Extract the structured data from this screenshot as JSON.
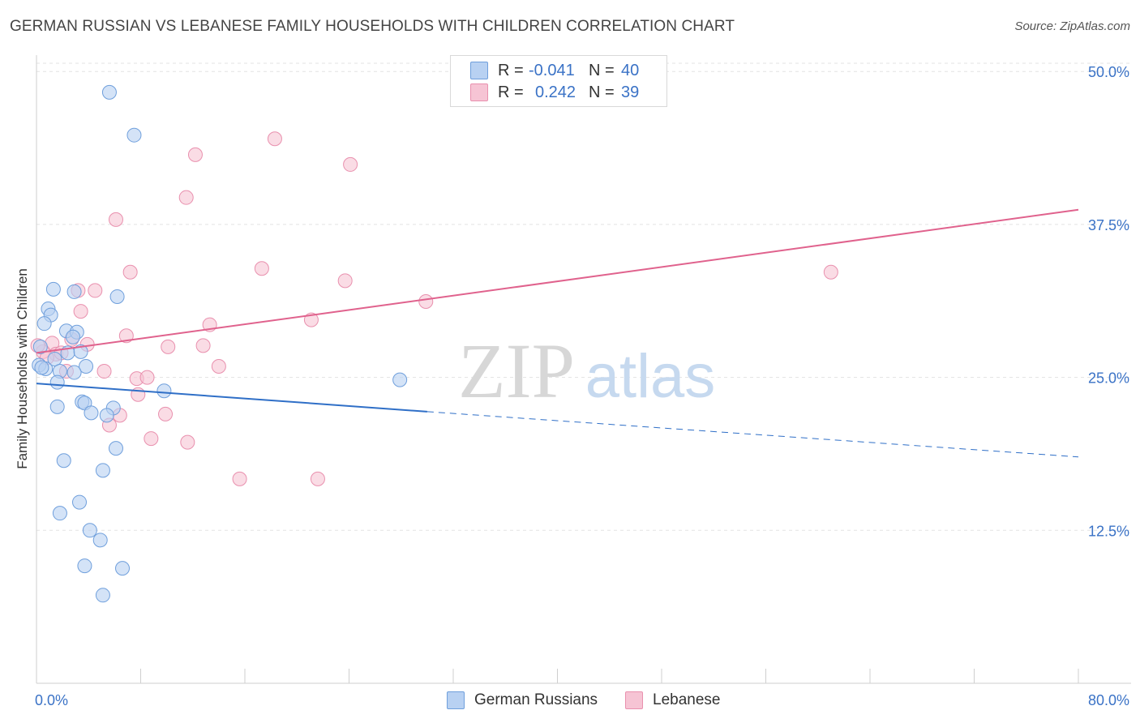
{
  "title": "GERMAN RUSSIAN VS LEBANESE FAMILY HOUSEHOLDS WITH CHILDREN CORRELATION CHART",
  "source": "Source: ZipAtlas.com",
  "watermark": {
    "zip": "ZIP",
    "atlas": "atlas"
  },
  "legend": {
    "series1": {
      "r_label": "R =",
      "r_value": "-0.041",
      "n_label": "N =",
      "n_value": "40"
    },
    "series2": {
      "r_label": "R =",
      "r_value": "0.242",
      "n_label": "N =",
      "n_value": "39"
    }
  },
  "bottom_legend": {
    "series1": "German Russians",
    "series2": "Lebanese"
  },
  "colors": {
    "series1_fill": "#b8d1f2",
    "series1_stroke": "#6f9fdc",
    "series1_line": "#2f6fc7",
    "series2_fill": "#f6c4d4",
    "series2_stroke": "#e990ae",
    "series2_line": "#e0628d",
    "tick_text": "#3a72c6",
    "grid": "#e3e3e3"
  },
  "chart_data": {
    "type": "scatter",
    "title": "GERMAN RUSSIAN VS LEBANESE FAMILY HOUSEHOLDS WITH CHILDREN CORRELATION CHART",
    "xlabel": "",
    "ylabel": "Family Households with Children",
    "xlim": [
      0,
      80
    ],
    "ylim": [
      0,
      52
    ],
    "x_tick_labels": [
      "0.0%",
      "80.0%"
    ],
    "y_ticks": [
      12.5,
      25.0,
      37.5,
      50.0
    ],
    "y_tick_labels": [
      "12.5%",
      "25.0%",
      "37.5%",
      "50.0%"
    ],
    "grid": true,
    "series": [
      {
        "name": "German Russians",
        "r": -0.041,
        "n": 40,
        "points": [
          [
            5.6,
            48.3
          ],
          [
            7.5,
            44.8
          ],
          [
            1.3,
            32.2
          ],
          [
            2.9,
            32.0
          ],
          [
            6.2,
            31.6
          ],
          [
            0.9,
            30.6
          ],
          [
            1.1,
            30.1
          ],
          [
            0.6,
            29.4
          ],
          [
            2.3,
            28.8
          ],
          [
            3.1,
            28.7
          ],
          [
            2.8,
            28.3
          ],
          [
            0.3,
            27.5
          ],
          [
            1.4,
            26.5
          ],
          [
            2.4,
            27.0
          ],
          [
            3.4,
            27.1
          ],
          [
            0.2,
            26.0
          ],
          [
            0.7,
            25.7
          ],
          [
            3.8,
            25.9
          ],
          [
            1.8,
            25.5
          ],
          [
            1.6,
            24.6
          ],
          [
            9.8,
            23.9
          ],
          [
            27.9,
            24.8
          ],
          [
            3.5,
            23.0
          ],
          [
            3.7,
            22.9
          ],
          [
            1.6,
            22.6
          ],
          [
            4.2,
            22.1
          ],
          [
            5.9,
            22.5
          ],
          [
            5.4,
            21.9
          ],
          [
            6.1,
            19.2
          ],
          [
            2.1,
            18.2
          ],
          [
            5.1,
            17.4
          ],
          [
            3.3,
            14.8
          ],
          [
            1.8,
            13.9
          ],
          [
            4.1,
            12.5
          ],
          [
            4.9,
            11.7
          ],
          [
            3.7,
            9.6
          ],
          [
            6.6,
            9.4
          ],
          [
            5.1,
            7.2
          ],
          [
            0.4,
            25.8
          ],
          [
            2.9,
            25.4
          ]
        ],
        "trend": {
          "x0": 0,
          "y0": 24.5,
          "x1": 30,
          "y1": 22.2,
          "dashed_to_x": 80,
          "dashed_to_y": 18.5
        }
      },
      {
        "name": "Lebanese",
        "r": 0.242,
        "n": 39,
        "points": [
          [
            18.3,
            44.5
          ],
          [
            12.2,
            43.2
          ],
          [
            24.1,
            42.4
          ],
          [
            11.5,
            39.7
          ],
          [
            6.1,
            37.9
          ],
          [
            17.3,
            33.9
          ],
          [
            7.2,
            33.6
          ],
          [
            23.7,
            32.9
          ],
          [
            61.0,
            33.6
          ],
          [
            3.2,
            32.1
          ],
          [
            4.5,
            32.1
          ],
          [
            29.9,
            31.2
          ],
          [
            3.4,
            30.4
          ],
          [
            13.3,
            29.3
          ],
          [
            21.1,
            29.7
          ],
          [
            6.9,
            28.4
          ],
          [
            1.2,
            27.8
          ],
          [
            2.7,
            28.1
          ],
          [
            10.1,
            27.5
          ],
          [
            12.8,
            27.6
          ],
          [
            3.9,
            27.7
          ],
          [
            0.5,
            27.1
          ],
          [
            1.5,
            26.9
          ],
          [
            0.8,
            26.6
          ],
          [
            14.0,
            25.9
          ],
          [
            2.3,
            25.5
          ],
          [
            5.2,
            25.5
          ],
          [
            7.7,
            24.9
          ],
          [
            8.5,
            25.0
          ],
          [
            7.8,
            23.6
          ],
          [
            9.9,
            22.0
          ],
          [
            6.4,
            21.9
          ],
          [
            5.6,
            21.1
          ],
          [
            8.8,
            20.0
          ],
          [
            11.6,
            19.7
          ],
          [
            15.6,
            16.7
          ],
          [
            21.6,
            16.7
          ],
          [
            0.1,
            27.6
          ],
          [
            1.9,
            27.0
          ]
        ],
        "trend": {
          "x0": 0,
          "y0": 27.0,
          "x1": 80,
          "y1": 38.7
        }
      }
    ]
  }
}
